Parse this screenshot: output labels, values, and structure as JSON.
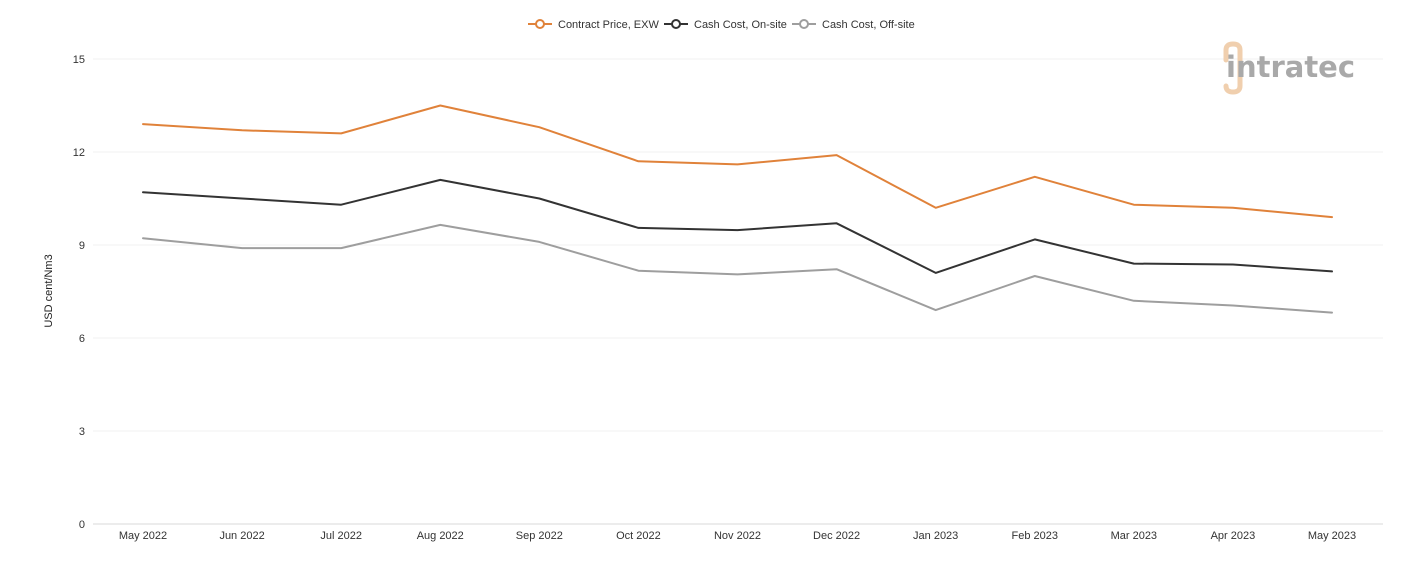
{
  "logo": {
    "text": "intratec",
    "accent_color": "#f0cfae",
    "color": "#a9a9a9"
  },
  "chart_data": {
    "type": "line",
    "ylabel": "USD cent/Nm3",
    "xlabel": "",
    "ylim": [
      0,
      15
    ],
    "yticks": [
      0,
      3,
      6,
      9,
      12,
      15
    ],
    "grid": true,
    "legend_position": "top-center",
    "categories": [
      "May 2022",
      "Jun 2022",
      "Jul 2022",
      "Aug 2022",
      "Sep 2022",
      "Oct 2022",
      "Nov 2022",
      "Dec 2022",
      "Jan 2023",
      "Feb 2023",
      "Mar 2023",
      "Apr 2023",
      "May 2023"
    ],
    "series": [
      {
        "name": "Contract Price, EXW",
        "color": "#e0823a",
        "values": [
          12.9,
          12.7,
          12.6,
          13.5,
          12.8,
          11.7,
          11.6,
          11.9,
          10.2,
          11.2,
          10.3,
          10.2,
          9.9
        ]
      },
      {
        "name": "Cash Cost, On-site",
        "color": "#333333",
        "values": [
          10.7,
          10.5,
          10.3,
          11.1,
          10.5,
          9.55,
          9.48,
          9.7,
          8.1,
          9.18,
          8.4,
          8.37,
          8.15
        ]
      },
      {
        "name": "Cash Cost, Off-site",
        "color": "#9e9e9e",
        "values": [
          9.22,
          8.9,
          8.9,
          9.65,
          9.1,
          8.17,
          8.05,
          8.22,
          6.9,
          8.0,
          7.2,
          7.05,
          6.82
        ]
      }
    ]
  }
}
